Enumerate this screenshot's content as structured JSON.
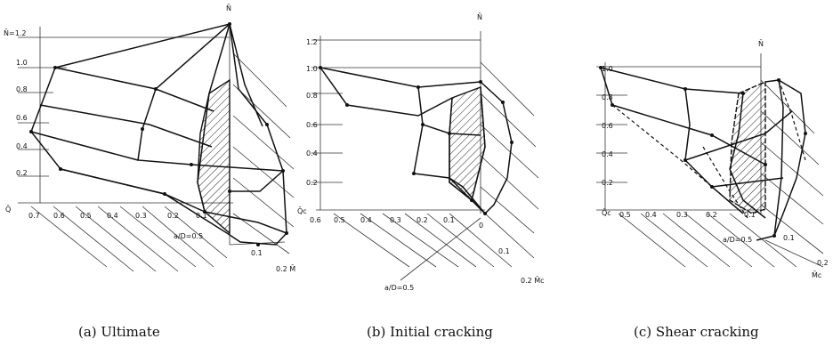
{
  "panels": [
    {
      "id": "a",
      "caption": "(a) Ultimate",
      "axis_labels": {
        "vertical": "N̄",
        "n_tick": "N̄=1.2",
        "q_axis": "Q̄",
        "m_axis": "0.2 M̄",
        "ratio": "a/D=0.5"
      },
      "n_ticks": [
        "1.0",
        "0.8",
        "0.6",
        "0.4",
        "0.2"
      ],
      "q_ticks": [
        "0.7",
        "0.6",
        "0.5",
        "0.4",
        "0.3",
        "0.2",
        "0.1"
      ],
      "m_ticks": [
        "0.1"
      ]
    },
    {
      "id": "b",
      "caption": "(b) Initial cracking",
      "axis_labels": {
        "vertical": "N̄",
        "q_axis": "Q̄c",
        "m_axis": "0.2 M̄c",
        "ratio": "a/D=0.5",
        "origin": "0"
      },
      "n_ticks": [
        "1.2",
        "1.0",
        "0.8",
        "0.6",
        "0.4",
        "0.2"
      ],
      "q_ticks": [
        "0.6",
        "0.5",
        "0.4",
        "0.3",
        "0.2",
        "0.1"
      ],
      "m_ticks": [
        "0.1"
      ]
    },
    {
      "id": "c",
      "caption": "(c) Shear cracking",
      "axis_labels": {
        "vertical": "N̄",
        "q_axis": "Q̄c",
        "m_axis": "M̄c",
        "m_tick_end": "0.2",
        "ratio": "a/D=0.5"
      },
      "n_ticks": [
        "1.0",
        "0.8",
        "0.6",
        "0.4",
        "0.2"
      ],
      "q_ticks": [
        "0.5",
        "0.4",
        "0.3",
        "0.2",
        "0.1"
      ],
      "m_ticks": [
        "0.1"
      ]
    }
  ]
}
